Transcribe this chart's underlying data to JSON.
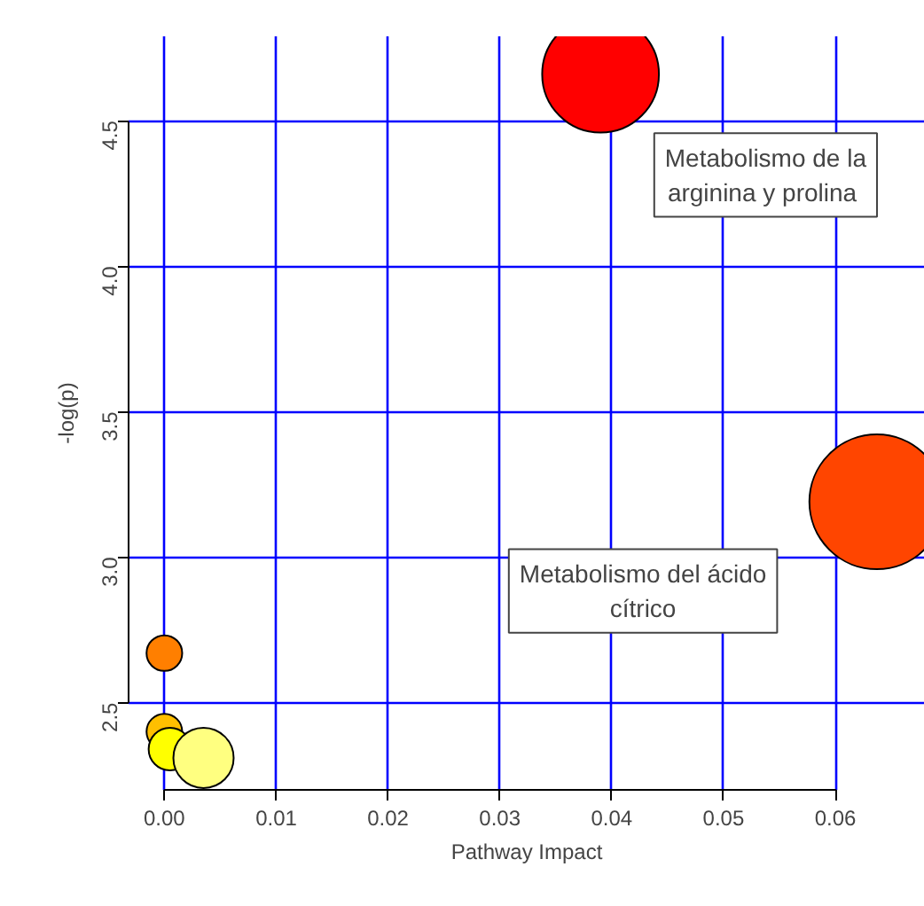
{
  "chart_data": {
    "type": "bubble",
    "xlabel": "Pathway Impact",
    "ylabel": "-log(p)",
    "x": [
      0.039,
      0.0637,
      0.0,
      0.0,
      0.0005,
      0.0035
    ],
    "values": [
      4.66,
      3.19,
      2.67,
      2.4,
      2.34,
      2.31
    ],
    "sizes": [
      0.75,
      1,
      0.07,
      0.07,
      0.1,
      0.2
    ],
    "colors": [
      "#ff0000",
      "#ff4500",
      "#ff7f00",
      "#ffbf00",
      "#ffff00",
      "#ffff80"
    ],
    "xlim": [
      -0.0032,
      0.068
    ],
    "ylim": [
      2.2,
      4.79
    ],
    "xticks": [
      {
        "value": 0,
        "label": "0.00"
      },
      0.01,
      0.02,
      0.03,
      0.04,
      0.05,
      0.06
    ],
    "yticks": [
      2.5,
      {
        "value": 3,
        "label": "3.0"
      },
      3.5,
      {
        "value": 4,
        "label": "4.0"
      },
      4.5
    ],
    "grid": true,
    "marker": "circle",
    "annotations": [
      "Metabolismo de la\narginina  y prolina",
      "Metabolismo del ácido\ncítrico"
    ]
  }
}
